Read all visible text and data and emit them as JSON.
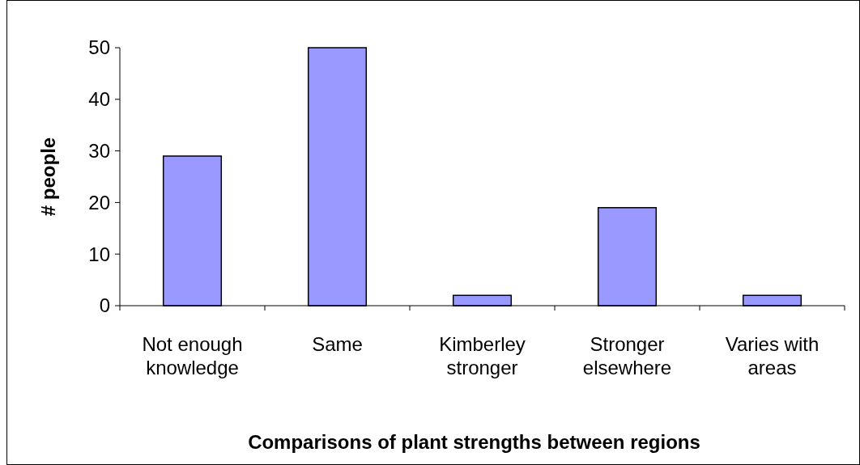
{
  "chart_data": {
    "type": "bar",
    "xlabel": "Comparisons of plant strengths between regions",
    "ylabel": "# people",
    "categories": [
      "Not enough knowledge",
      "Same",
      "Kimberley stronger",
      "Stronger elsewhere",
      "Varies with areas"
    ],
    "values": [
      29,
      50,
      2,
      19,
      2
    ],
    "color": "#9999ff",
    "ylim": [
      0,
      50
    ],
    "yticks": [
      0,
      10,
      20,
      30,
      40,
      50
    ]
  }
}
